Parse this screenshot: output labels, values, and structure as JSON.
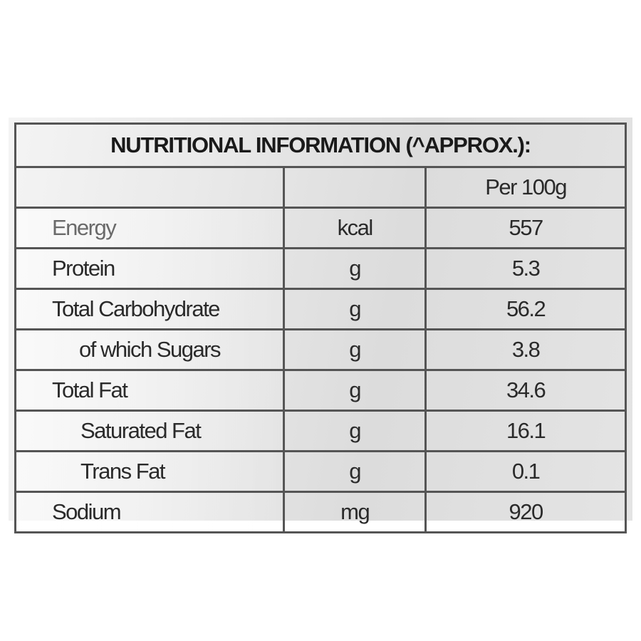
{
  "title": "NUTRITIONAL INFORMATION (^APPROX.):",
  "header": {
    "col1": "",
    "col2": "",
    "col3": "Per 100g"
  },
  "rows": [
    {
      "nutrient": "Energy",
      "unit": "kcal",
      "value": "557"
    },
    {
      "nutrient": "Protein",
      "unit": "g",
      "value": "5.3"
    },
    {
      "nutrient": "Total Carbohydrate",
      "unit": "g",
      "value": "56.2"
    },
    {
      "nutrient": "of which Sugars",
      "unit": "g",
      "value": "3.8"
    },
    {
      "nutrient": "Total Fat",
      "unit": "g",
      "value": "34.6"
    },
    {
      "nutrient": "Saturated Fat",
      "unit": "g",
      "value": "16.1"
    },
    {
      "nutrient": "Trans Fat",
      "unit": "g",
      "value": "0.1"
    },
    {
      "nutrient": "Sodium",
      "unit": "mg",
      "value": "920"
    }
  ]
}
